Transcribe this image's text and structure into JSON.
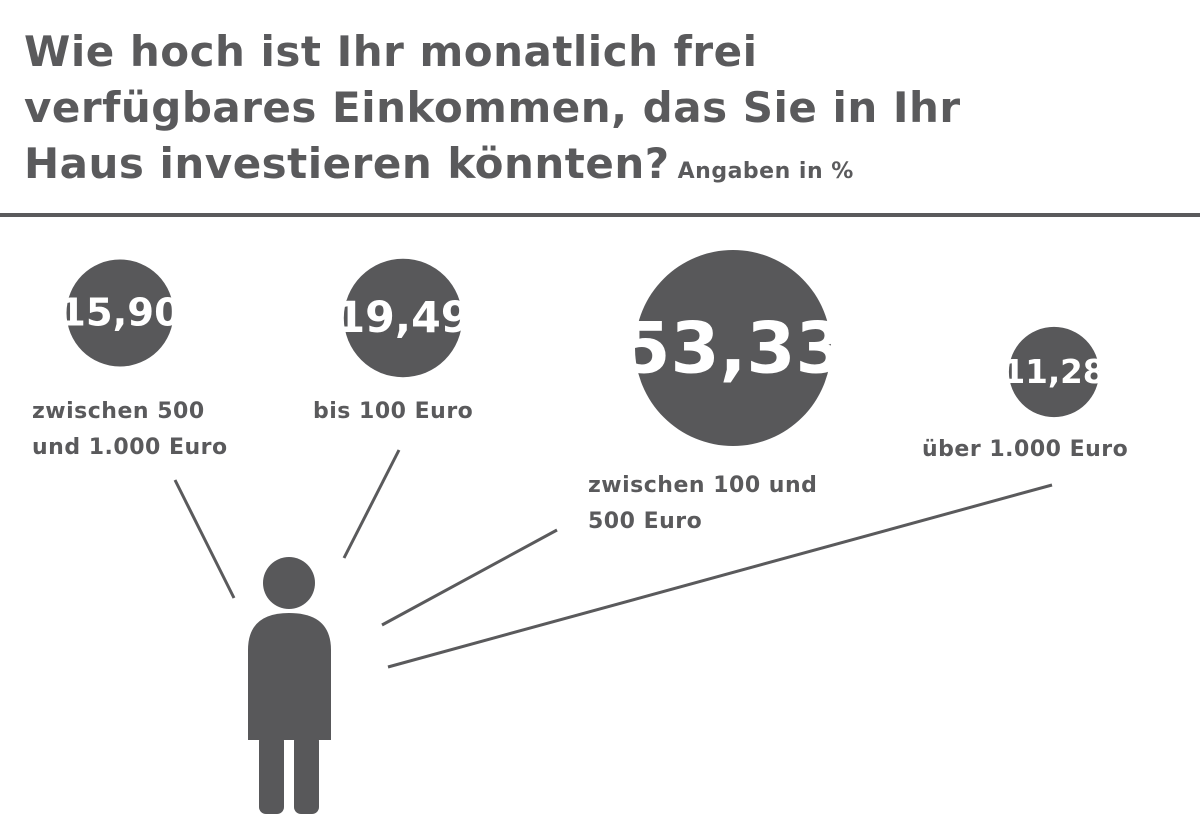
{
  "title_lines": [
    "Wie hoch ist Ihr monatlich frei",
    "verfügbares Einkommen, das Sie in Ihr",
    "Haus investieren könnten?"
  ],
  "unit_note": "Angaben in %",
  "colors": {
    "ink": "#5a5a5c",
    "bubble": "#58585a",
    "bubble_text": "#ffffff",
    "background": "#ffffff"
  },
  "icons": [
    "person-icon"
  ],
  "chart_data": {
    "type": "bubble",
    "title": "Wie hoch ist Ihr monatlich frei verfügbares Einkommen, das Sie in Ihr Haus investieren könnten?",
    "unit": "Angaben in %",
    "categories": [
      "zwischen 500 und 1.000 Euro",
      "bis 100 Euro",
      "zwischen 100 und 500 Euro",
      "über 1.000 Euro"
    ],
    "values": [
      15.9,
      19.49,
      53.33,
      11.28
    ],
    "value_labels": [
      "15,90",
      "19,49",
      "53,33",
      "11,28"
    ],
    "label_lines": [
      [
        "zwischen 500",
        "und 1.000 Euro"
      ],
      [
        "bis 100 Euro"
      ],
      [
        "zwischen 100 und",
        "500 Euro"
      ],
      [
        "über 1.000 Euro"
      ]
    ]
  }
}
